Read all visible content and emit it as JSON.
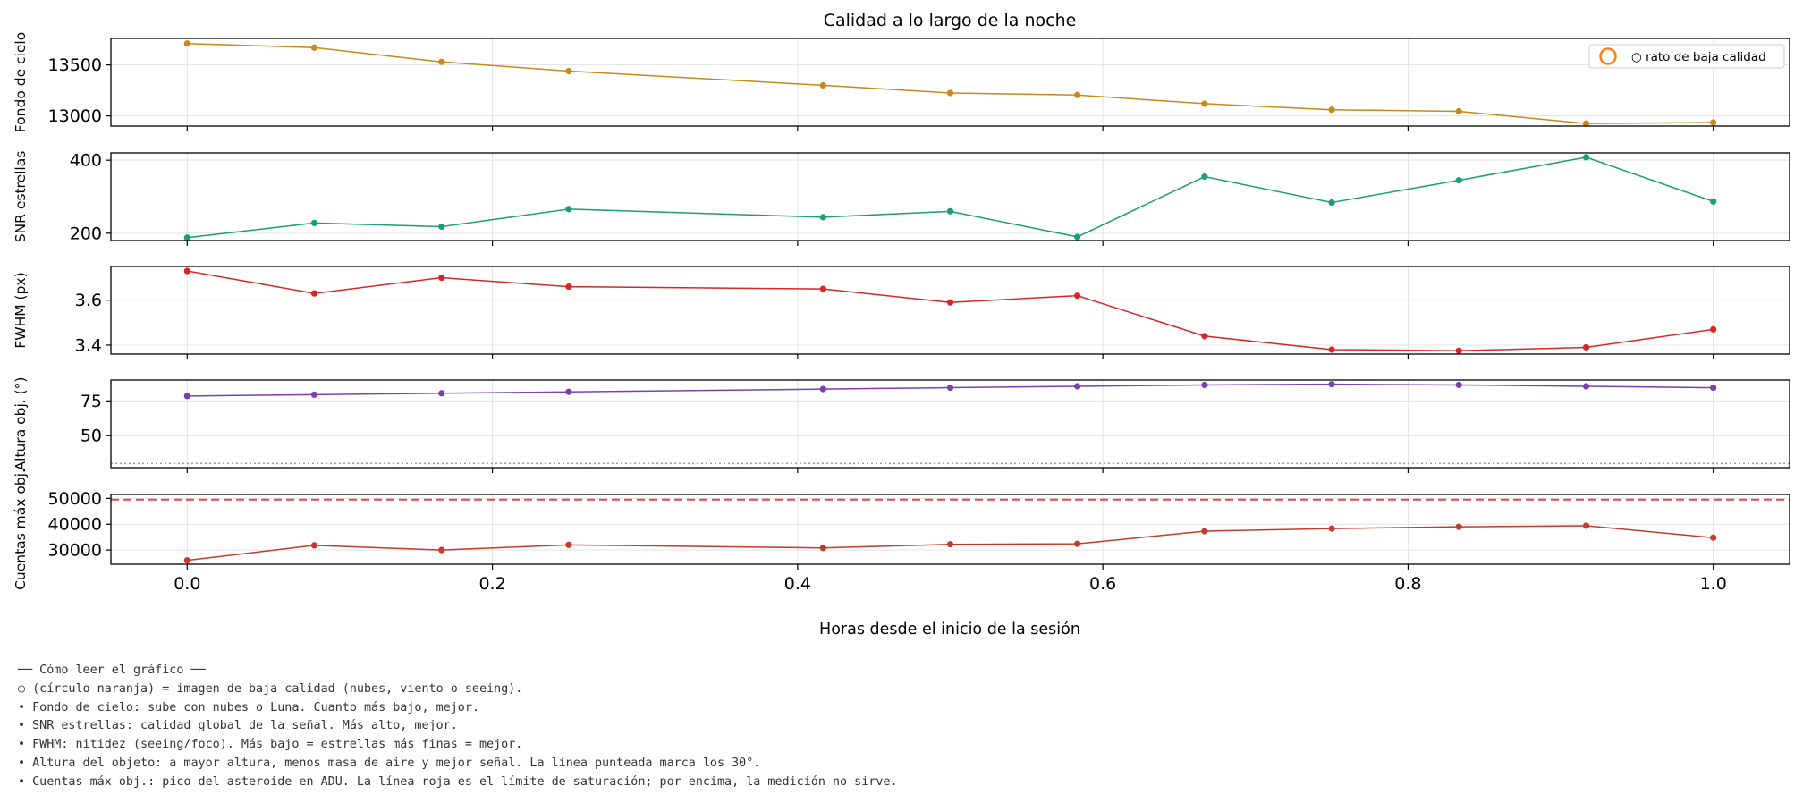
{
  "chart_data": {
    "type": "line",
    "title": "Calidad a lo largo de la noche",
    "xlabel": "Horas desde el inicio de la sesión",
    "x": [
      0.0,
      0.0833,
      0.1667,
      0.25,
      0.4167,
      0.5,
      0.5833,
      0.6667,
      0.75,
      0.8333,
      0.9167,
      1.0
    ],
    "xlim": [
      -0.05,
      1.05
    ],
    "xticks": [
      0.0,
      0.2,
      0.4,
      0.6,
      0.8,
      1.0
    ],
    "xtick_labels": [
      "0.0",
      "0.2",
      "0.4",
      "0.6",
      "0.8",
      "1.0"
    ],
    "grid": true,
    "legend": {
      "placement": "top-right",
      "label": "○ rato de baja calidad",
      "marker_color": "#ff7f0e"
    },
    "panels": [
      {
        "ylabel": "Fondo de cielo",
        "color": "#c8891a",
        "ylim": [
          12900,
          13760
        ],
        "yticks": [
          13000,
          13500
        ],
        "ytick_labels": [
          "13000",
          "13500"
        ],
        "values": [
          13710,
          13670,
          13530,
          13440,
          13300,
          13225,
          13205,
          13120,
          13060,
          13045,
          12925,
          12935
        ]
      },
      {
        "ylabel": "SNR estrellas",
        "color": "#1a9e78",
        "ylim": [
          180,
          420
        ],
        "yticks": [
          200,
          400
        ],
        "ytick_labels": [
          "200",
          "400"
        ],
        "values": [
          188,
          228,
          218,
          266,
          244,
          260,
          190,
          355,
          284,
          345,
          408,
          287
        ]
      },
      {
        "ylabel": "FWHM (px)",
        "color": "#d62728",
        "ylim": [
          3.36,
          3.75
        ],
        "yticks": [
          3.4,
          3.6
        ],
        "ytick_labels": [
          "3.4",
          "3.6"
        ],
        "values": [
          3.73,
          3.63,
          3.7,
          3.66,
          3.65,
          3.59,
          3.62,
          3.44,
          3.38,
          3.375,
          3.39,
          3.47
        ]
      },
      {
        "ylabel": "Altura obj. (°)",
        "color": "#7b3fb0",
        "ylim": [
          27,
          90
        ],
        "yticks": [
          50,
          75
        ],
        "ytick_labels": [
          "50",
          "75"
        ],
        "values": [
          78.5,
          79.5,
          80.5,
          81.5,
          83.5,
          84.5,
          85.5,
          86.5,
          87,
          86.5,
          85.5,
          84.5
        ],
        "hline": {
          "value": 30,
          "style": "dotted",
          "color": "#999999"
        }
      },
      {
        "ylabel": "Cuentas máx obj.",
        "color": "#c23b2e",
        "ylim": [
          24500,
          51500
        ],
        "yticks": [
          30000,
          40000,
          50000
        ],
        "ytick_labels": [
          "30000",
          "40000",
          "50000"
        ],
        "values": [
          26000,
          31800,
          30000,
          32000,
          30800,
          32200,
          32400,
          37300,
          38300,
          39000,
          39400,
          34800
        ],
        "hline": {
          "value": 49500,
          "style": "dashed",
          "color": "#e34a4a"
        }
      }
    ]
  },
  "notes": {
    "lines": [
      "── Cómo leer el gráfico ──",
      "○ (círculo naranja) = imagen de baja calidad (nubes, viento o seeing).",
      "• Fondo de cielo: sube con nubes o Luna. Cuanto más bajo, mejor.",
      "• SNR estrellas: calidad global de la señal. Más alto, mejor.",
      "• FWHM: nitidez (seeing/foco). Más bajo = estrellas más finas = mejor.",
      "• Altura del objeto: a mayor altura, menos masa de aire y mejor señal. La línea punteada marca los 30°.",
      "• Cuentas máx obj.: pico del asteroide en ADU. La línea roja es el límite de saturación; por encima, la medición no sirve."
    ]
  }
}
